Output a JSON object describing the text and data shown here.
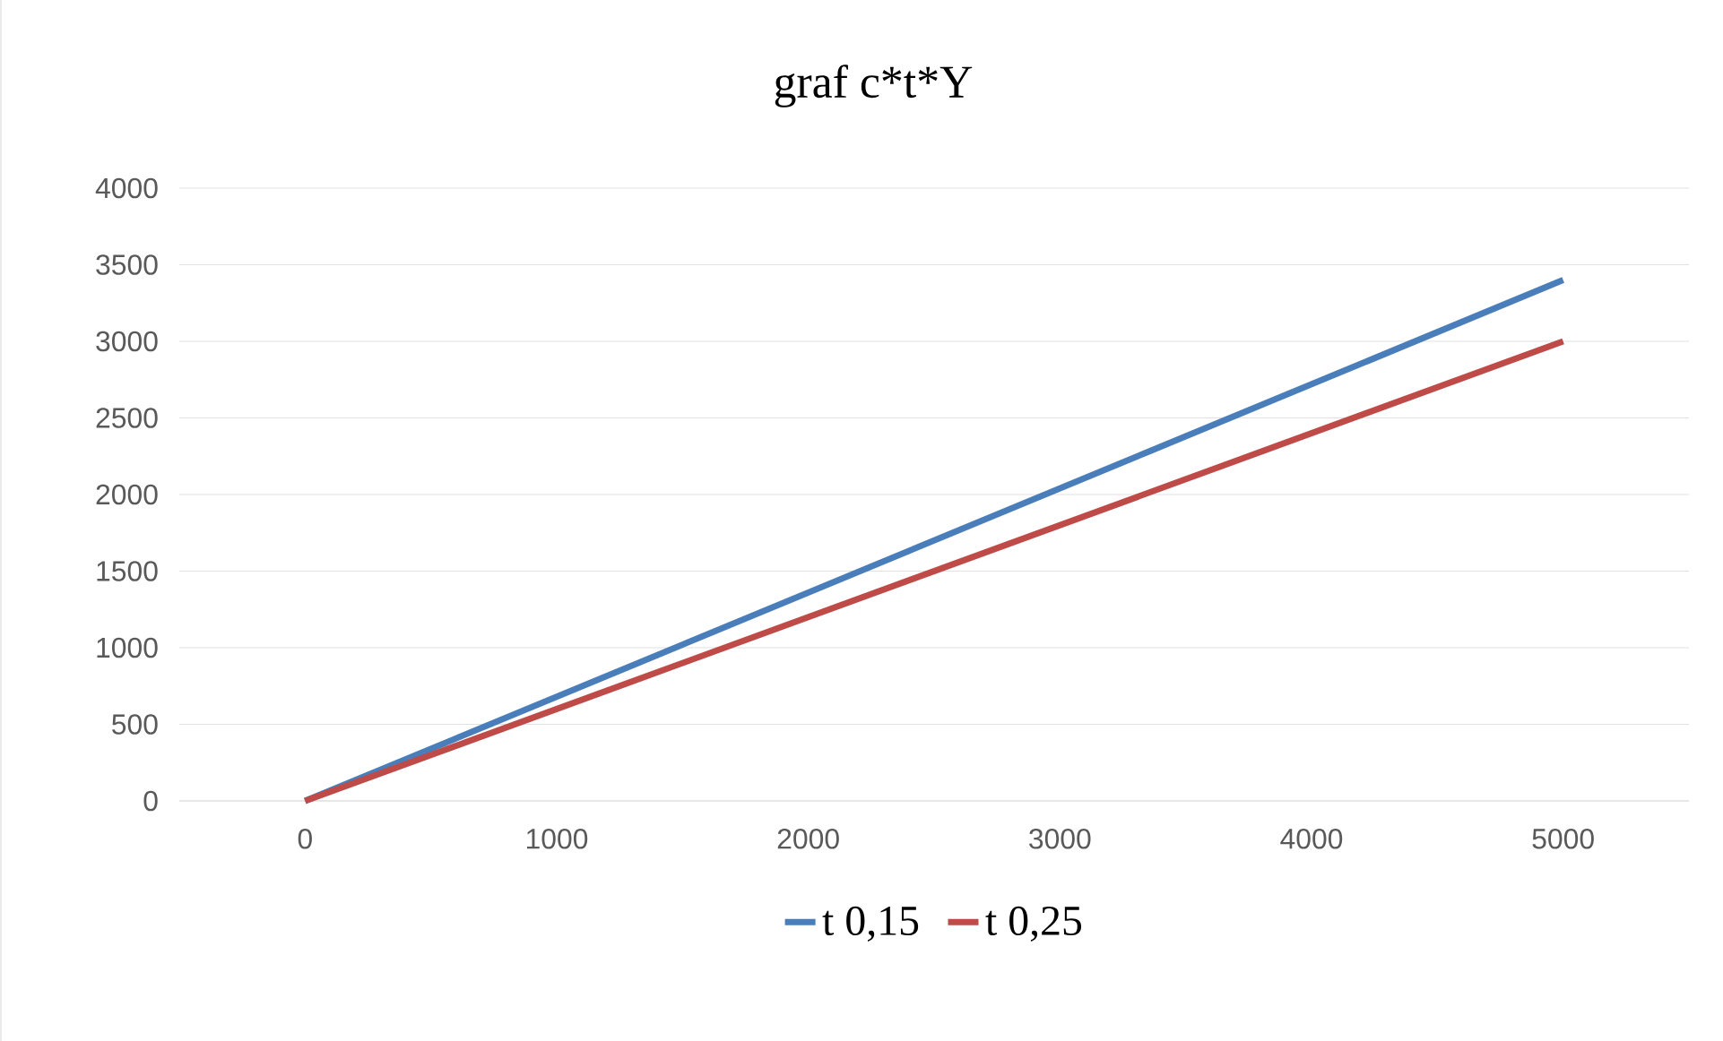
{
  "chart_data": {
    "type": "line",
    "title": "graf c*t*Y",
    "x": [
      0,
      5000
    ],
    "series": [
      {
        "name": "t 0,15",
        "color": "#4a7ebb",
        "values": [
          0,
          3400
        ]
      },
      {
        "name": "t 0,25",
        "color": "#be4b48",
        "values": [
          0,
          3000
        ]
      }
    ],
    "xlim": [
      -500,
      5500
    ],
    "xticks": [
      0,
      1000,
      2000,
      3000,
      4000,
      5000
    ],
    "ylim": [
      0,
      4000
    ],
    "yticks": [
      0,
      500,
      1000,
      1500,
      2000,
      2500,
      3000,
      3500,
      4000
    ],
    "grid": "y",
    "legend": "bottom",
    "marker": "none",
    "line_style": "solid"
  }
}
